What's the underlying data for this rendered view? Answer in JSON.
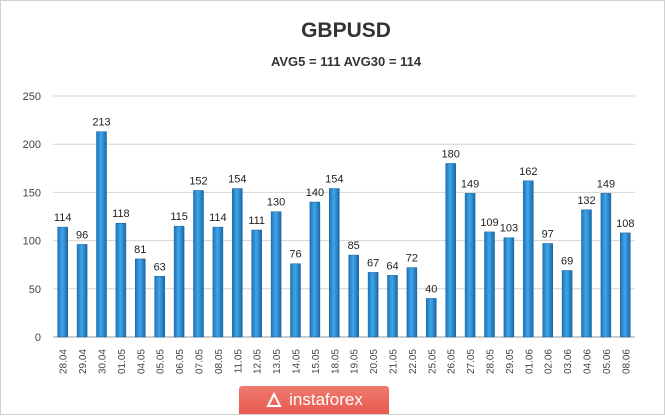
{
  "brand": {
    "text": "instaforex"
  },
  "chart_data": {
    "type": "bar",
    "title": "GBPUSD",
    "subtitle": "AVG5 = 111 AVG30 = 114",
    "xlabel": "",
    "ylabel": "",
    "ylim": [
      0,
      250
    ],
    "yticks": [
      0,
      50,
      100,
      150,
      200,
      250
    ],
    "grid": true,
    "legend": "none",
    "bar_color": "#2c8fd6",
    "categories": [
      "28.04",
      "29.04",
      "30.04",
      "01.05",
      "04.05",
      "05.05",
      "06.05",
      "07.05",
      "08.05",
      "11.05",
      "12.05",
      "13.05",
      "14.05",
      "15.05",
      "18.05",
      "19.05",
      "20.05",
      "21.05",
      "22.05",
      "25.05",
      "26.05",
      "27.05",
      "28.05",
      "29.05",
      "01.06",
      "02.06",
      "03.06",
      "04.06",
      "05.06",
      "08.06"
    ],
    "values": [
      114,
      96,
      213,
      118,
      81,
      63,
      115,
      152,
      114,
      154,
      111,
      130,
      76,
      140,
      154,
      85,
      67,
      64,
      72,
      40,
      180,
      149,
      109,
      103,
      162,
      97,
      69,
      132,
      149,
      108
    ]
  }
}
